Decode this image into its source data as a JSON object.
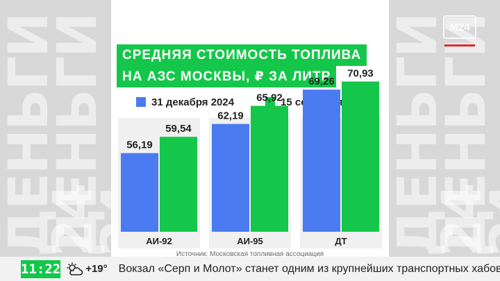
{
  "side_text": "ДЕНЬГИ 24",
  "logo": "M24",
  "chart_data": {
    "type": "bar",
    "title_lines": [
      "СРЕДНЯЯ СТОИМОСТЬ ТОПЛИВА",
      "НА АЗС МОСКВЫ, ₽ ЗА ЛИТР"
    ],
    "categories": [
      "АИ-92",
      "АИ-95",
      "ДТ"
    ],
    "series": [
      {
        "name": "31 декабря 2024",
        "color": "#4a7bf0",
        "values": [
          56.19,
          62.19,
          69.26
        ],
        "labels": [
          "56,19",
          "62,19",
          "69,26"
        ]
      },
      {
        "name": "15 сентября 2025",
        "color": "#14c74a",
        "values": [
          59.54,
          65.92,
          70.93
        ],
        "labels": [
          "59,54",
          "65,92",
          "70,93"
        ]
      }
    ],
    "ylim": [
      40,
      72
    ],
    "legend": "top",
    "grid": false,
    "source": "Источник: Московская топливная ассоциация"
  },
  "ticker": {
    "time": "11:22",
    "weather_icon": "partly-cloudy-icon",
    "temperature": "+19°",
    "headline": "Вокзал «Серп и Молот» станет одним из крупнейших транспортных хабов"
  }
}
